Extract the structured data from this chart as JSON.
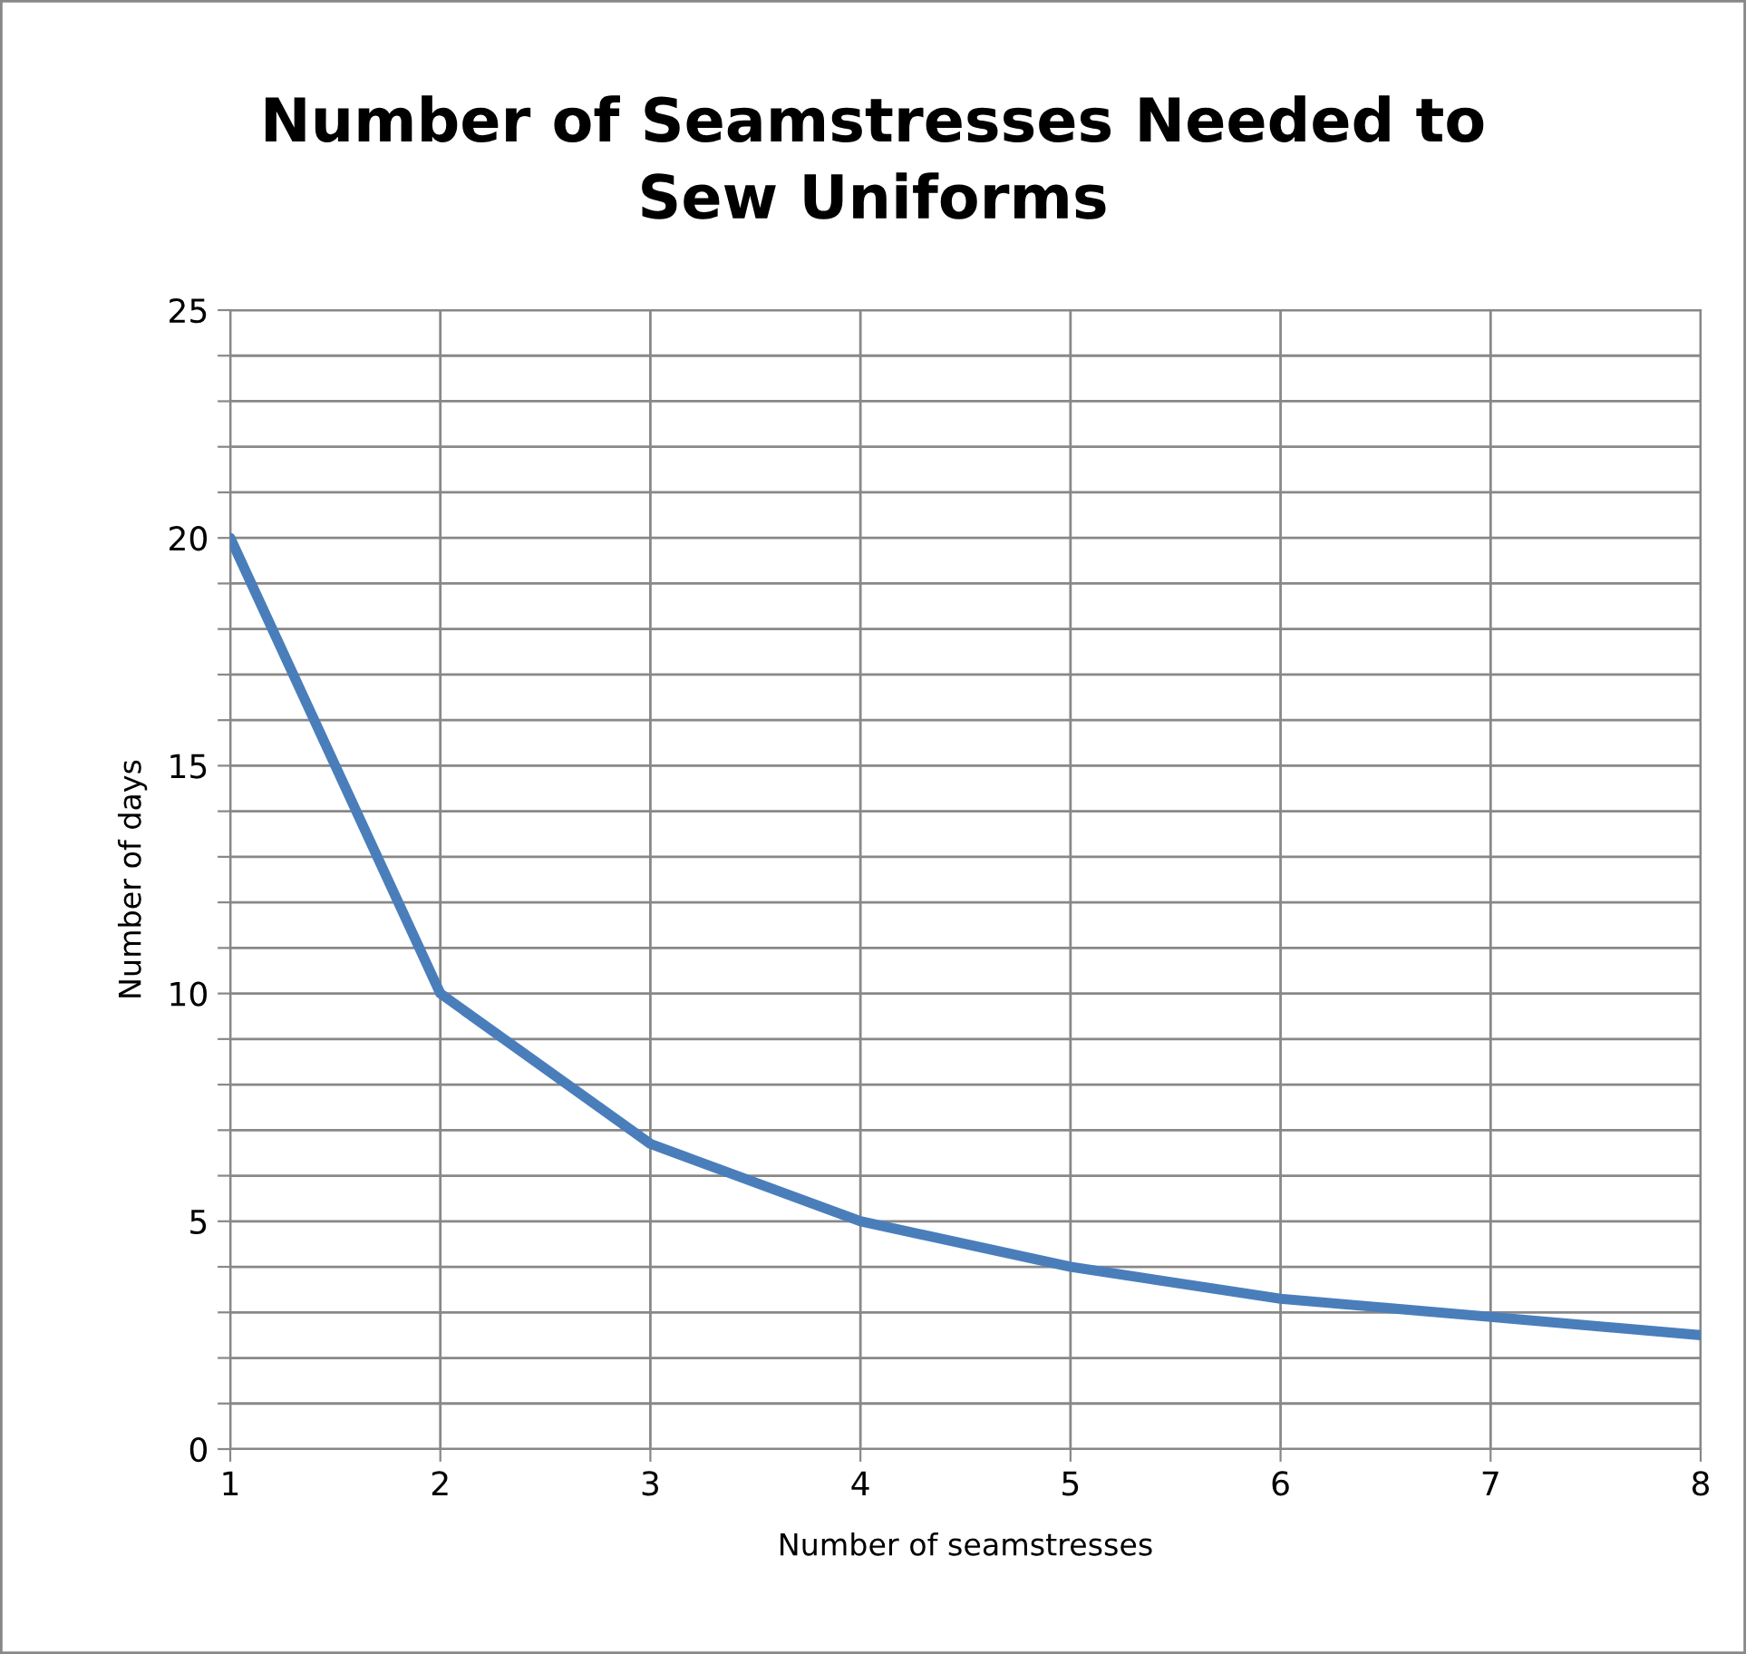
{
  "chart_data": {
    "type": "line",
    "title": "Number of Seamstresses Needed to\nSew Uniforms",
    "xlabel": "Number of seamstresses",
    "ylabel": "Number of days",
    "x": [
      1,
      2,
      3,
      4,
      5,
      6,
      7,
      8
    ],
    "series": [
      {
        "color": "#4a7ebb",
        "values": [
          20,
          10,
          6.7,
          5,
          4,
          3.3,
          2.9,
          2.5
        ]
      }
    ],
    "xlim": [
      1,
      8
    ],
    "xticks": [
      1,
      2,
      3,
      4,
      5,
      6,
      7,
      8
    ],
    "ylim": [
      0,
      25
    ],
    "yticks": [
      0,
      {
        "value": 1,
        "label": null
      },
      {
        "value": 2,
        "label": null
      },
      {
        "value": 3,
        "label": null
      },
      {
        "value": 4,
        "label": null
      },
      5,
      {
        "value": 6,
        "label": null
      },
      {
        "value": 7,
        "label": null
      },
      {
        "value": 8,
        "label": null
      },
      {
        "value": 9,
        "label": null
      },
      10,
      {
        "value": 11,
        "label": null
      },
      {
        "value": 12,
        "label": null
      },
      {
        "value": 13,
        "label": null
      },
      {
        "value": 14,
        "label": null
      },
      15,
      {
        "value": 16,
        "label": null
      },
      {
        "value": 17,
        "label": null
      },
      {
        "value": 18,
        "label": null
      },
      {
        "value": 19,
        "label": null
      },
      20,
      {
        "value": 21,
        "label": null
      },
      {
        "value": 22,
        "label": null
      },
      {
        "value": 23,
        "label": null
      },
      {
        "value": 24,
        "label": null
      },
      25
    ],
    "grid": true,
    "marker": "none",
    "line_style": "solid",
    "legend": false
  }
}
